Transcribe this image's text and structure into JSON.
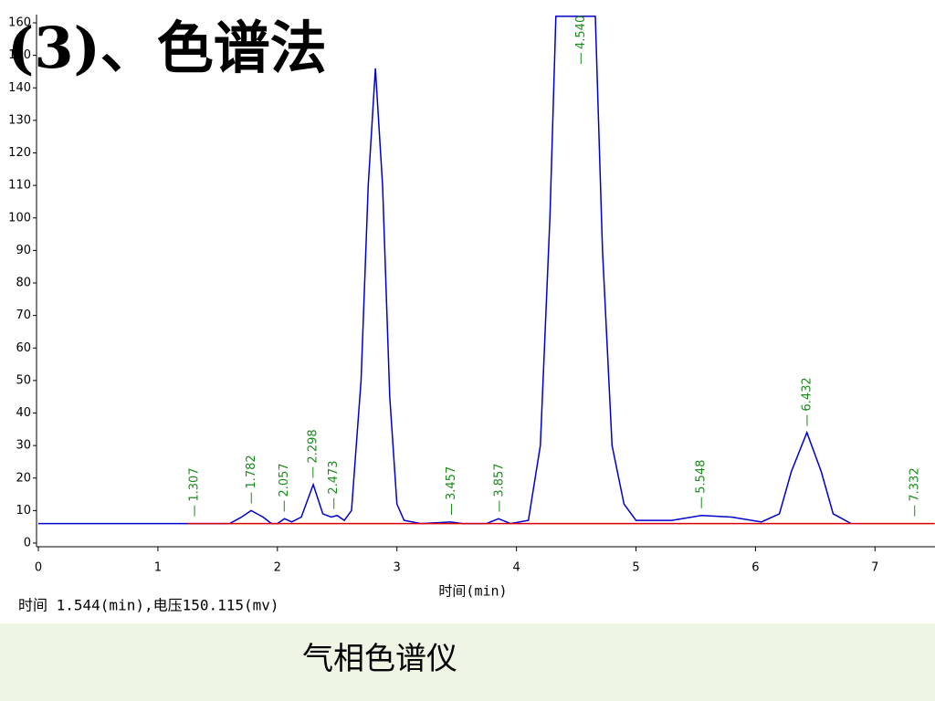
{
  "title": "(3)、色谱法",
  "caption": "气相色谱仪",
  "chart_data": {
    "type": "line",
    "xlabel": "时间(min)",
    "status": "时间 1.544(min),电压150.115(mv)",
    "xlim": [
      0,
      7.5
    ],
    "xticks": [
      0,
      1,
      2,
      3,
      4,
      5,
      6,
      7
    ],
    "ylim": [
      0,
      160
    ],
    "yticks": [
      0,
      10,
      20,
      30,
      40,
      50,
      60,
      70,
      80,
      90,
      100,
      110,
      120,
      130,
      140,
      150,
      160
    ],
    "series": [
      {
        "color": "#0000cc",
        "x": [
          0,
          1.6,
          1.7,
          1.78,
          1.88,
          1.95,
          2.0,
          2.06,
          2.12,
          2.2,
          2.3,
          2.38,
          2.45,
          2.5,
          2.56,
          2.62,
          2.7,
          2.76,
          2.82,
          2.88,
          2.94,
          3.0,
          3.06,
          3.2,
          3.45,
          3.55,
          3.75,
          3.85,
          3.95,
          4.1,
          4.2,
          4.28,
          4.33,
          4.66,
          4.72,
          4.8,
          4.9,
          5.0,
          5.3,
          5.55,
          5.8,
          6.05,
          6.2,
          6.3,
          6.43,
          6.55,
          6.65,
          6.8
        ],
        "values": [
          6,
          6,
          8,
          10,
          8,
          6,
          6,
          7.5,
          6.5,
          8,
          18,
          9,
          8,
          8.5,
          7,
          10,
          50,
          110,
          146,
          110,
          45,
          12,
          7,
          6,
          6.5,
          6,
          6,
          7.5,
          6,
          7,
          30,
          100,
          162,
          162,
          90,
          30,
          12,
          7,
          7,
          8.5,
          8,
          6.5,
          9,
          22,
          34,
          22,
          9,
          6
        ]
      },
      {
        "color": "#dd0000",
        "x": [
          1.25,
          7.5
        ],
        "values": [
          6,
          6
        ]
      }
    ],
    "peak_labels": [
      1.307,
      1.782,
      2.057,
      2.298,
      2.473,
      3.457,
      3.857,
      4.54,
      5.548,
      6.432,
      7.332
    ],
    "peak_label_text": [
      "1.307",
      "1.782",
      "2.057",
      "2.298",
      "2.473",
      "3.457",
      "3.857",
      "4.540",
      "5.548",
      "6.432",
      "7.332"
    ],
    "label_color": "#1a8a1a"
  }
}
